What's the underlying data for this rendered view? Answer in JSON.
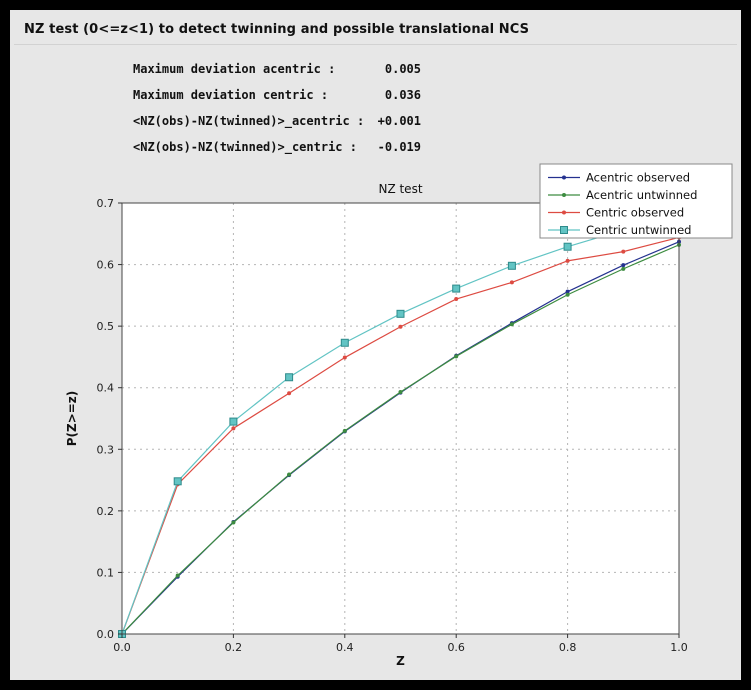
{
  "window": {
    "bg_color": "#000000",
    "panel_color": "#e7e7e7"
  },
  "header": {
    "title": "NZ test (0<=z<1) to detect twinning and possible translational NCS"
  },
  "stats": [
    {
      "label": "Maximum deviation acentric :",
      "value": "0.005"
    },
    {
      "label": "Maximum deviation centric :",
      "value": "0.036"
    },
    {
      "label": "<NZ(obs)-NZ(twinned)>_acentric :",
      "value": "+0.001"
    },
    {
      "label": "<NZ(obs)-NZ(twinned)>_centric :",
      "value": "-0.019"
    }
  ],
  "chart_data": {
    "type": "line",
    "title": "NZ test",
    "xlabel": "Z",
    "ylabel": "P(Z>=z)",
    "xlim": [
      0.0,
      1.0
    ],
    "ylim": [
      0.0,
      0.7
    ],
    "x_ticks": [
      0.0,
      0.2,
      0.4,
      0.6,
      0.8,
      1.0
    ],
    "y_ticks": [
      0.0,
      0.1,
      0.2,
      0.3,
      0.4,
      0.5,
      0.6,
      0.7
    ],
    "grid": "dashed",
    "grid_color": "#b5b5b5",
    "plot_bg": "#ffffff",
    "legend_position": "top-right",
    "x": [
      0.0,
      0.1,
      0.2,
      0.3,
      0.4,
      0.5,
      0.6,
      0.7,
      0.8,
      0.9,
      1.0
    ],
    "series": [
      {
        "name": "Acentric observed",
        "color": "#24318f",
        "marker": "dot",
        "values": [
          0.0,
          0.093,
          0.182,
          0.258,
          0.329,
          0.392,
          0.452,
          0.505,
          0.556,
          0.599,
          0.637
        ]
      },
      {
        "name": "Acentric untwinned",
        "color": "#3d8c40",
        "marker": "dot",
        "values": [
          0.0,
          0.095,
          0.181,
          0.259,
          0.33,
          0.393,
          0.451,
          0.503,
          0.551,
          0.593,
          0.632
        ]
      },
      {
        "name": "Centric observed",
        "color": "#dd4b42",
        "marker": "dot",
        "values": [
          0.0,
          0.243,
          0.334,
          0.391,
          0.449,
          0.499,
          0.544,
          0.571,
          0.606,
          0.621,
          0.644
        ]
      },
      {
        "name": "Centric untwinned",
        "color": "#62c4c4",
        "marker": "square",
        "marker_edge": "#2e8b8b",
        "values": [
          0.0,
          0.248,
          0.345,
          0.417,
          0.473,
          0.52,
          0.561,
          0.598,
          0.629,
          0.656,
          0.683
        ]
      }
    ]
  }
}
